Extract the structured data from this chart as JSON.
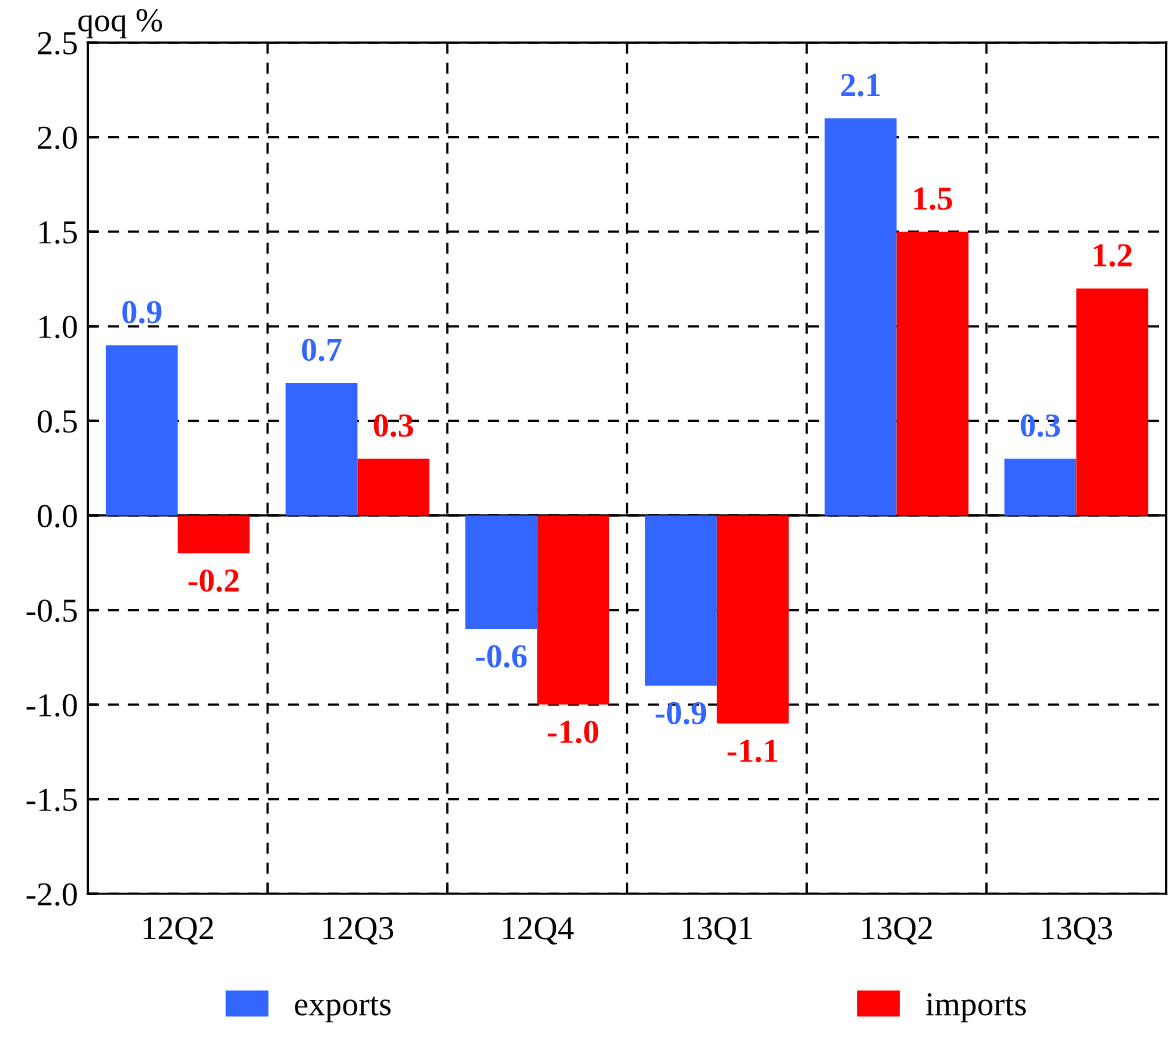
{
  "chart_data": {
    "type": "bar",
    "ylabel": "qoq %",
    "categories": [
      "12Q2",
      "12Q3",
      "12Q4",
      "13Q1",
      "13Q2",
      "13Q3"
    ],
    "series": [
      {
        "name": "exports",
        "color": "#3366ff",
        "values": [
          0.9,
          0.7,
          -0.6,
          -0.9,
          2.1,
          0.3
        ],
        "value_labels": [
          "0.9",
          "0.7",
          "-0.6",
          "-0.9",
          "2.1",
          "0.3"
        ]
      },
      {
        "name": "imports",
        "color": "#ff0000",
        "values": [
          -0.2,
          0.3,
          -1.0,
          -1.1,
          1.5,
          1.2
        ],
        "value_labels": [
          "-0.2",
          "0.3",
          "-1.0",
          "-1.1",
          "1.5",
          "1.2"
        ]
      }
    ],
    "ylim": [
      -2.0,
      2.5
    ],
    "yticks": [
      {
        "value": -2.0,
        "label": "-2.0"
      },
      {
        "value": -1.5,
        "label": "-1.5"
      },
      {
        "value": -1.0,
        "label": "-1.0"
      },
      {
        "value": -0.5,
        "label": "-0.5"
      },
      {
        "value": 0.0,
        "label": "0.0"
      },
      {
        "value": 0.5,
        "label": "0.5"
      },
      {
        "value": 1.0,
        "label": "1.0"
      },
      {
        "value": 1.5,
        "label": "1.5"
      },
      {
        "value": 2.0,
        "label": "2.0"
      },
      {
        "value": 2.5,
        "label": "2.5"
      }
    ],
    "grid": true,
    "legend": "bottom"
  }
}
